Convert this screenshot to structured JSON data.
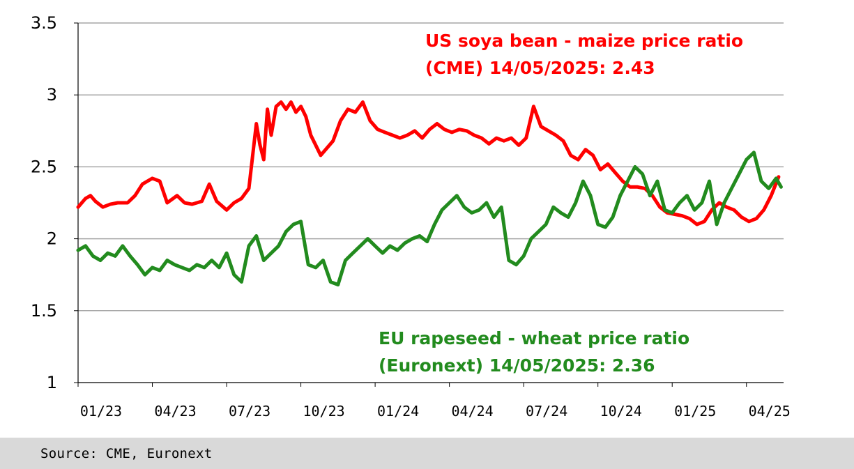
{
  "chart_data": {
    "type": "line",
    "title": "",
    "xlabel": "",
    "ylabel": "",
    "ylim": [
      1,
      3.5
    ],
    "yticks": [
      "3.5",
      "3",
      "2.5",
      "2",
      "1.5",
      "1"
    ],
    "ytick_values": [
      3.5,
      3,
      2.5,
      2,
      1.5,
      1
    ],
    "xticks": [
      "01/23",
      "04/23",
      "07/23",
      "10/23",
      "01/24",
      "04/24",
      "07/24",
      "10/24",
      "01/25",
      "04/25"
    ],
    "xlim_months": [
      0,
      28.5
    ],
    "grid": "horizontal",
    "x_unit": "months since 01/23",
    "series": [
      {
        "name": "US soya bean - maize price ratio (CME)",
        "color": "#ff0000",
        "x": [
          0,
          0.3,
          0.5,
          0.7,
          1.0,
          1.3,
          1.6,
          2.0,
          2.3,
          2.6,
          3.0,
          3.3,
          3.6,
          4.0,
          4.3,
          4.6,
          5.0,
          5.3,
          5.6,
          6.0,
          6.3,
          6.6,
          6.9,
          7.2,
          7.35,
          7.5,
          7.65,
          7.8,
          8.0,
          8.2,
          8.4,
          8.6,
          8.8,
          9.0,
          9.2,
          9.4,
          9.6,
          9.8,
          10.0,
          10.3,
          10.6,
          10.9,
          11.2,
          11.5,
          11.8,
          12.1,
          12.4,
          12.7,
          13.0,
          13.3,
          13.6,
          13.9,
          14.2,
          14.5,
          14.8,
          15.1,
          15.4,
          15.7,
          16.0,
          16.3,
          16.6,
          16.9,
          17.2,
          17.5,
          17.8,
          18.1,
          18.4,
          18.7,
          19.0,
          19.3,
          19.6,
          19.9,
          20.2,
          20.5,
          20.8,
          21.1,
          21.4,
          21.7,
          22.0,
          22.3,
          22.6,
          22.9,
          23.2,
          23.5,
          23.8,
          24.1,
          24.4,
          24.7,
          25.0,
          25.3,
          25.6,
          25.9,
          26.2,
          26.5,
          26.8,
          27.1,
          27.4,
          27.7,
          28.0,
          28.3
        ],
        "values": [
          2.22,
          2.28,
          2.3,
          2.26,
          2.22,
          2.24,
          2.25,
          2.25,
          2.3,
          2.38,
          2.42,
          2.4,
          2.25,
          2.3,
          2.25,
          2.24,
          2.26,
          2.38,
          2.26,
          2.2,
          2.25,
          2.28,
          2.35,
          2.8,
          2.65,
          2.55,
          2.9,
          2.72,
          2.92,
          2.95,
          2.9,
          2.95,
          2.88,
          2.92,
          2.85,
          2.72,
          2.65,
          2.58,
          2.62,
          2.68,
          2.82,
          2.9,
          2.88,
          2.95,
          2.82,
          2.76,
          2.74,
          2.72,
          2.7,
          2.72,
          2.75,
          2.7,
          2.76,
          2.8,
          2.76,
          2.74,
          2.76,
          2.75,
          2.72,
          2.7,
          2.66,
          2.7,
          2.68,
          2.7,
          2.65,
          2.7,
          2.92,
          2.78,
          2.75,
          2.72,
          2.68,
          2.58,
          2.55,
          2.62,
          2.58,
          2.48,
          2.52,
          2.46,
          2.4,
          2.36,
          2.36,
          2.35,
          2.3,
          2.22,
          2.18,
          2.17,
          2.16,
          2.14,
          2.1,
          2.12,
          2.2,
          2.25,
          2.22,
          2.2,
          2.15,
          2.12,
          2.14,
          2.2,
          2.3,
          2.43
        ]
      },
      {
        "name": "EU rapeseed - wheat price ratio (Euronext)",
        "color": "#228b1e",
        "x": [
          0,
          0.3,
          0.6,
          0.9,
          1.2,
          1.5,
          1.8,
          2.1,
          2.4,
          2.7,
          3.0,
          3.3,
          3.6,
          3.9,
          4.2,
          4.5,
          4.8,
          5.1,
          5.4,
          5.7,
          6.0,
          6.3,
          6.6,
          6.9,
          7.2,
          7.5,
          7.8,
          8.1,
          8.4,
          8.7,
          9.0,
          9.3,
          9.6,
          9.9,
          10.2,
          10.5,
          10.8,
          11.1,
          11.4,
          11.7,
          12.0,
          12.3,
          12.6,
          12.9,
          13.2,
          13.5,
          13.8,
          14.1,
          14.4,
          14.7,
          15.0,
          15.3,
          15.6,
          15.9,
          16.2,
          16.5,
          16.8,
          17.1,
          17.4,
          17.7,
          18.0,
          18.3,
          18.6,
          18.9,
          19.2,
          19.5,
          19.8,
          20.1,
          20.4,
          20.7,
          21.0,
          21.3,
          21.6,
          21.9,
          22.2,
          22.5,
          22.8,
          23.1,
          23.4,
          23.7,
          24.0,
          24.3,
          24.6,
          24.9,
          25.2,
          25.5,
          25.8,
          26.1,
          26.4,
          26.7,
          27.0,
          27.3,
          27.6,
          27.9,
          28.2,
          28.4
        ],
        "values": [
          1.92,
          1.95,
          1.88,
          1.85,
          1.9,
          1.88,
          1.95,
          1.88,
          1.82,
          1.75,
          1.8,
          1.78,
          1.85,
          1.82,
          1.8,
          1.78,
          1.82,
          1.8,
          1.85,
          1.8,
          1.9,
          1.75,
          1.7,
          1.95,
          2.02,
          1.85,
          1.9,
          1.95,
          2.05,
          2.1,
          2.12,
          1.82,
          1.8,
          1.85,
          1.7,
          1.68,
          1.85,
          1.9,
          1.95,
          2.0,
          1.95,
          1.9,
          1.95,
          1.92,
          1.97,
          2.0,
          2.02,
          1.98,
          2.1,
          2.2,
          2.25,
          2.3,
          2.22,
          2.18,
          2.2,
          2.25,
          2.15,
          2.22,
          1.85,
          1.82,
          1.88,
          2.0,
          2.05,
          2.1,
          2.22,
          2.18,
          2.15,
          2.25,
          2.4,
          2.3,
          2.1,
          2.08,
          2.15,
          2.3,
          2.4,
          2.5,
          2.45,
          2.3,
          2.4,
          2.2,
          2.18,
          2.25,
          2.3,
          2.2,
          2.25,
          2.4,
          2.1,
          2.25,
          2.35,
          2.45,
          2.55,
          2.6,
          2.4,
          2.35,
          2.42,
          2.36
        ]
      }
    ],
    "annotations": [
      {
        "lines": [
          "US soya bean - maize price ratio",
          "(CME) 14/05/2025: 2.43"
        ],
        "color": "#ff0000"
      },
      {
        "lines": [
          "EU rapeseed - wheat price ratio",
          "(Euronext) 14/05/2025: 2.36"
        ],
        "color": "#228b1e"
      }
    ]
  },
  "source": "Source: CME, Euronext"
}
